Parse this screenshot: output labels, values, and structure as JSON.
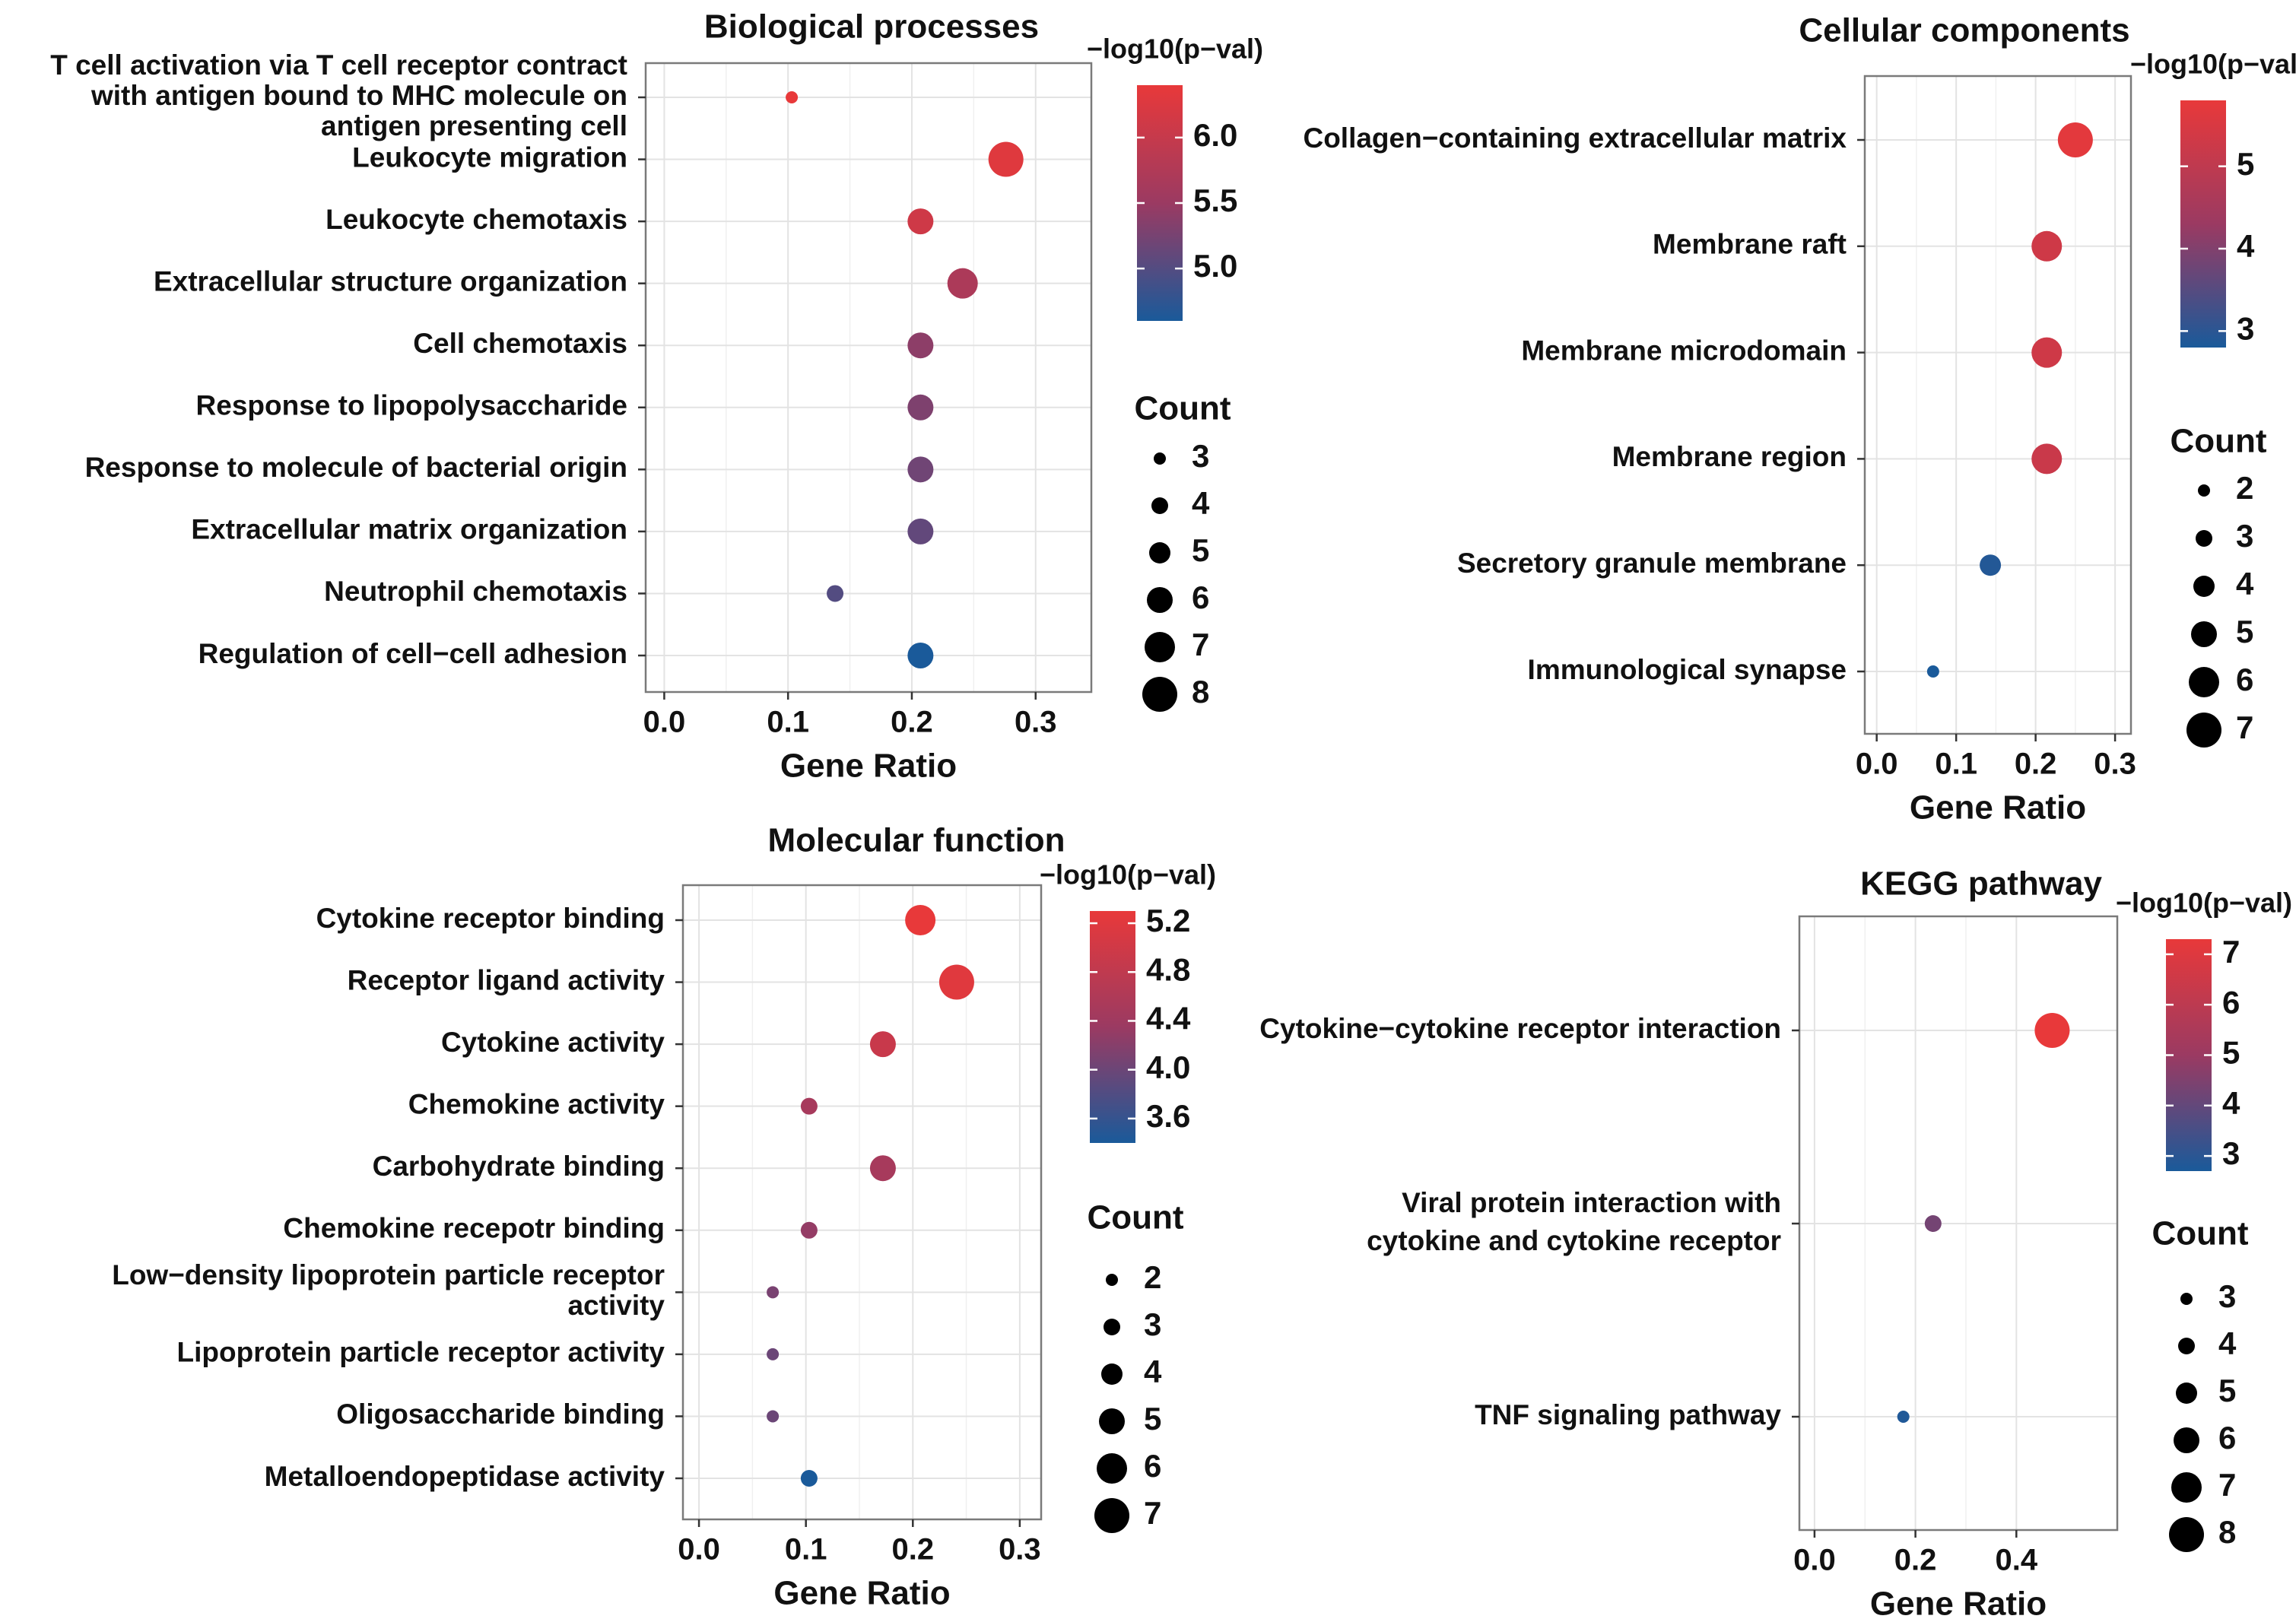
{
  "colors": {
    "high": "#e8393a",
    "mid": "#9b3a62",
    "low": "#1a5a9a",
    "grid": "#e3e3e3",
    "border": "#7a7a7a",
    "dot": "#000000"
  },
  "chart_data": [
    {
      "id": "bp",
      "type": "scatter",
      "title": "Biological processes",
      "xlabel": "Gene Ratio",
      "ylabel": "",
      "xlim": [
        -0.015,
        0.345
      ],
      "xticks": [
        "0.0",
        "0.1",
        "0.2",
        "0.3"
      ],
      "xtick_values": [
        0,
        0.1,
        0.2,
        0.3
      ],
      "color_title": "−log10(p−val)",
      "color_range": [
        4.6,
        6.4
      ],
      "color_ticks": [
        "6.0",
        "5.5",
        "5.0"
      ],
      "color_tick_values": [
        6.0,
        5.5,
        5.0
      ],
      "size_title": "Count",
      "size_range": [
        3,
        8
      ],
      "size_ticks": [
        "3",
        "4",
        "5",
        "6",
        "7",
        "8"
      ],
      "size_tick_values": [
        3,
        4,
        5,
        6,
        7,
        8
      ],
      "terms": [
        {
          "label": [
            "T cell activation via T cell receptor contract",
            "with antigen bound to MHC molecule on",
            "antigen presenting cell"
          ],
          "gene_ratio": 0.103,
          "count": 3,
          "neglog10p": 6.4
        },
        {
          "label": [
            "Leukocyte migration"
          ],
          "gene_ratio": 0.276,
          "count": 8,
          "neglog10p": 6.3
        },
        {
          "label": [
            "Leukocyte chemotaxis"
          ],
          "gene_ratio": 0.207,
          "count": 6,
          "neglog10p": 6.1
        },
        {
          "label": [
            "Extracellular structure organization"
          ],
          "gene_ratio": 0.241,
          "count": 7,
          "neglog10p": 5.7
        },
        {
          "label": [
            "Cell chemotaxis"
          ],
          "gene_ratio": 0.207,
          "count": 6,
          "neglog10p": 5.4
        },
        {
          "label": [
            "Response to lipopolysaccharide"
          ],
          "gene_ratio": 0.207,
          "count": 6,
          "neglog10p": 5.3
        },
        {
          "label": [
            "Response to molecule of bacterial origin"
          ],
          "gene_ratio": 0.207,
          "count": 6,
          "neglog10p": 5.2
        },
        {
          "label": [
            "Extracellular matrix organization"
          ],
          "gene_ratio": 0.207,
          "count": 6,
          "neglog10p": 5.1
        },
        {
          "label": [
            "Neutrophil chemotaxis"
          ],
          "gene_ratio": 0.138,
          "count": 4,
          "neglog10p": 5.0
        },
        {
          "label": [
            "Regulation of cell−cell adhesion"
          ],
          "gene_ratio": 0.207,
          "count": 6,
          "neglog10p": 4.6
        }
      ]
    },
    {
      "id": "cc",
      "type": "scatter",
      "title": "Cellular components",
      "xlabel": "Gene Ratio",
      "ylabel": "",
      "xlim": [
        -0.015,
        0.32
      ],
      "xticks": [
        "0.0",
        "0.1",
        "0.2",
        "0.3"
      ],
      "xtick_values": [
        0,
        0.1,
        0.2,
        0.3
      ],
      "color_title": "−log10(p−val)",
      "color_range": [
        2.8,
        5.8
      ],
      "color_ticks": [
        "5",
        "4",
        "3"
      ],
      "color_tick_values": [
        5,
        4,
        3
      ],
      "size_title": "Count",
      "size_range": [
        2,
        7
      ],
      "size_ticks": [
        "2",
        "3",
        "4",
        "5",
        "6",
        "7"
      ],
      "size_tick_values": [
        2,
        3,
        4,
        5,
        6,
        7
      ],
      "terms": [
        {
          "label": [
            "Collagen−containing extracellular matrix"
          ],
          "gene_ratio": 0.25,
          "count": 7,
          "neglog10p": 5.7
        },
        {
          "label": [
            "Membrane raft"
          ],
          "gene_ratio": 0.214,
          "count": 6,
          "neglog10p": 5.3
        },
        {
          "label": [
            "Membrane microdomain"
          ],
          "gene_ratio": 0.214,
          "count": 6,
          "neglog10p": 5.3
        },
        {
          "label": [
            "Membrane region"
          ],
          "gene_ratio": 0.214,
          "count": 6,
          "neglog10p": 5.2
        },
        {
          "label": [
            "Secretory granule membrane"
          ],
          "gene_ratio": 0.143,
          "count": 4,
          "neglog10p": 2.9
        },
        {
          "label": [
            "Immunological synapse"
          ],
          "gene_ratio": 0.071,
          "count": 2,
          "neglog10p": 2.8
        }
      ]
    },
    {
      "id": "mf",
      "type": "scatter",
      "title": "Molecular function",
      "xlabel": "Gene Ratio",
      "ylabel": "",
      "xlim": [
        -0.015,
        0.32
      ],
      "xticks": [
        "0.0",
        "0.1",
        "0.2",
        "0.3"
      ],
      "xtick_values": [
        0,
        0.1,
        0.2,
        0.3
      ],
      "color_title": "−log10(p−val)",
      "color_range": [
        3.4,
        5.3
      ],
      "color_ticks": [
        "5.2",
        "4.8",
        "4.4",
        "4.0",
        "3.6"
      ],
      "color_tick_values": [
        5.2,
        4.8,
        4.4,
        4.0,
        3.6
      ],
      "size_title": "Count",
      "size_range": [
        2,
        7
      ],
      "size_ticks": [
        "2",
        "3",
        "4",
        "5",
        "6",
        "7"
      ],
      "size_tick_values": [
        2,
        3,
        4,
        5,
        6,
        7
      ],
      "terms": [
        {
          "label": [
            "Cytokine receptor binding"
          ],
          "gene_ratio": 0.207,
          "count": 6,
          "neglog10p": 5.3
        },
        {
          "label": [
            "Receptor ligand activity"
          ],
          "gene_ratio": 0.241,
          "count": 7,
          "neglog10p": 5.2
        },
        {
          "label": [
            "Cytokine activity"
          ],
          "gene_ratio": 0.172,
          "count": 5,
          "neglog10p": 4.9
        },
        {
          "label": [
            "Chemokine activity"
          ],
          "gene_ratio": 0.103,
          "count": 3,
          "neglog10p": 4.5
        },
        {
          "label": [
            "Carbohydrate binding"
          ],
          "gene_ratio": 0.172,
          "count": 5,
          "neglog10p": 4.5
        },
        {
          "label": [
            "Chemokine recepotr binding"
          ],
          "gene_ratio": 0.103,
          "count": 3,
          "neglog10p": 4.3
        },
        {
          "label": [
            "Low−density lipoprotein particle receptor",
            "activity"
          ],
          "gene_ratio": 0.069,
          "count": 2,
          "neglog10p": 4.1
        },
        {
          "label": [
            "Lipoprotein particle receptor activity"
          ],
          "gene_ratio": 0.069,
          "count": 2,
          "neglog10p": 4.0
        },
        {
          "label": [
            "Oligosaccharide binding"
          ],
          "gene_ratio": 0.069,
          "count": 2,
          "neglog10p": 4.0
        },
        {
          "label": [
            "Metalloendopeptidase activity"
          ],
          "gene_ratio": 0.103,
          "count": 3,
          "neglog10p": 3.4
        }
      ]
    },
    {
      "id": "kegg",
      "type": "scatter",
      "title": "KEGG pathway",
      "xlabel": "Gene Ratio",
      "ylabel": "",
      "xlim": [
        -0.03,
        0.6
      ],
      "xticks": [
        "0.0",
        "0.2",
        "0.4"
      ],
      "xtick_values": [
        0,
        0.2,
        0.4
      ],
      "color_title": "−log10(p−val)",
      "color_range": [
        2.7,
        7.3
      ],
      "color_ticks": [
        "7",
        "6",
        "5",
        "4",
        "3"
      ],
      "color_tick_values": [
        7,
        6,
        5,
        4,
        3
      ],
      "size_title": "Count",
      "size_range": [
        3,
        8
      ],
      "size_ticks": [
        "3",
        "4",
        "5",
        "6",
        "7",
        "8"
      ],
      "size_tick_values": [
        3,
        4,
        5,
        6,
        7,
        8
      ],
      "terms": [
        {
          "label": [
            "Cytokine−cytokine receptor interaction"
          ],
          "gene_ratio": 0.471,
          "count": 8,
          "neglog10p": 7.3
        },
        {
          "label": [
            "Viral protein interaction with",
            "cytokine and cytokine receptor"
          ],
          "gene_ratio": 0.235,
          "count": 4,
          "neglog10p": 4.3
        },
        {
          "label": [
            "TNF signaling pathway"
          ],
          "gene_ratio": 0.176,
          "count": 3,
          "neglog10p": 2.8
        }
      ]
    }
  ]
}
